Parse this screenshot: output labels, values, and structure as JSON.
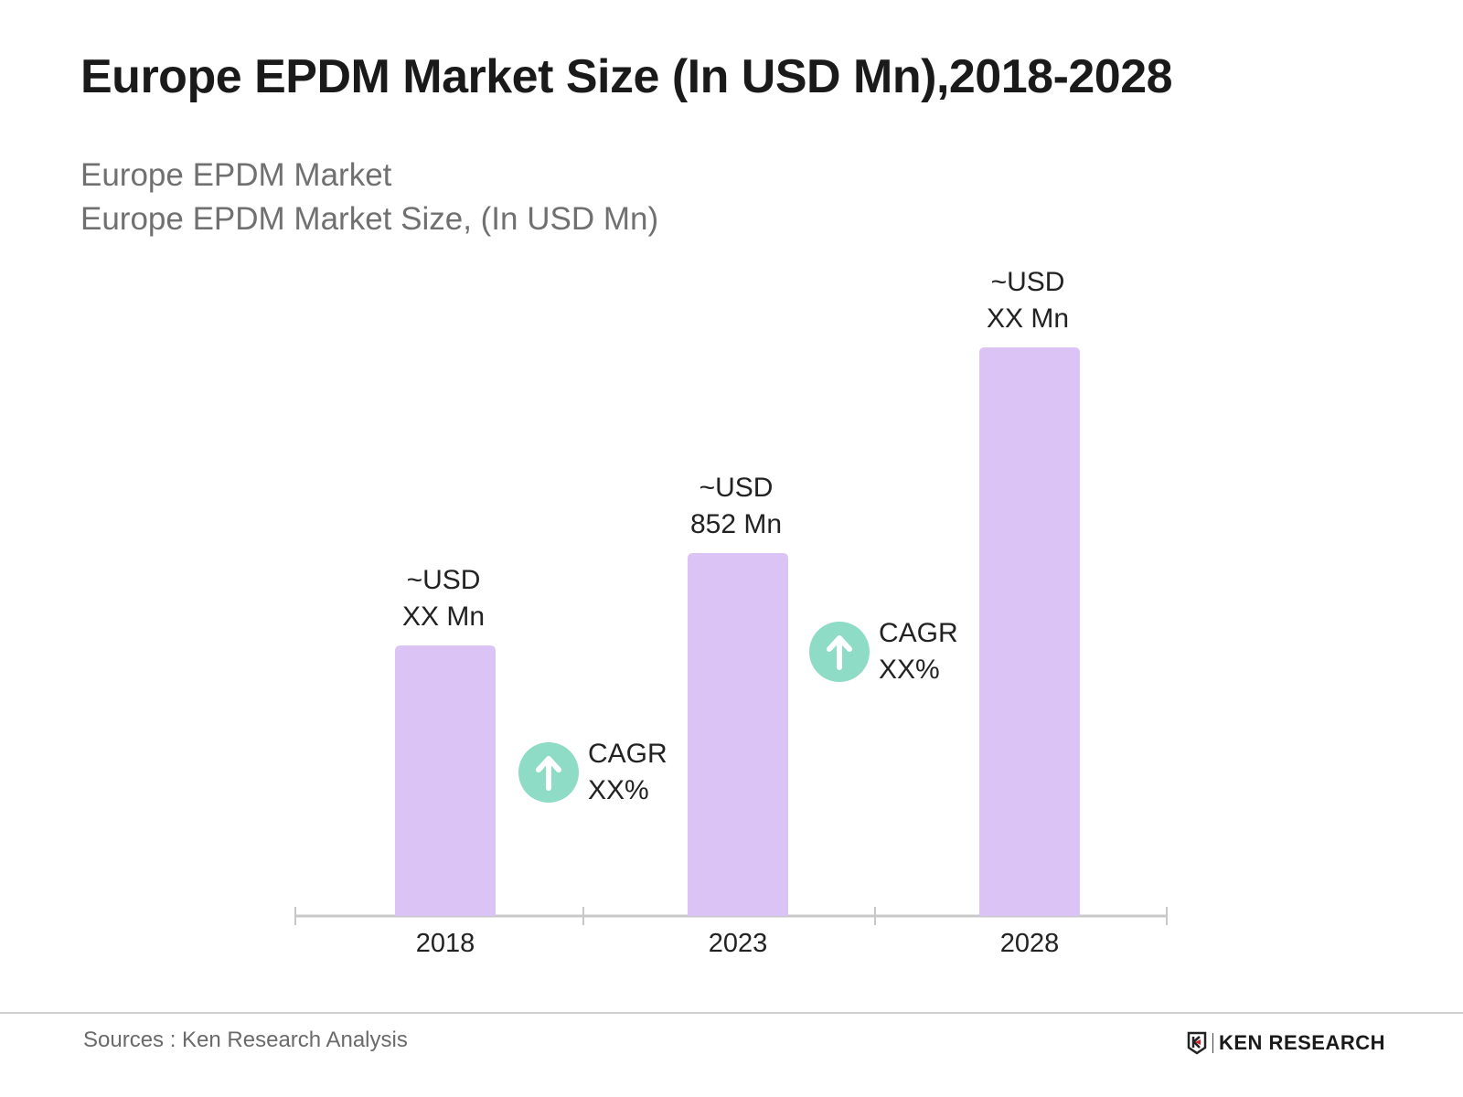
{
  "title": "Europe EPDM Market Size (In USD Mn),2018-2028",
  "subtitle_lines": [
    "Europe EPDM Market",
    "Europe EPDM Market Size, (In USD Mn)"
  ],
  "chart_data": {
    "type": "bar",
    "categories": [
      "2018",
      "2023",
      "2028"
    ],
    "values": [
      635,
      852,
      1335
    ],
    "data_labels": [
      [
        "~USD",
        "XX Mn"
      ],
      [
        "~USD",
        "852 Mn"
      ],
      [
        "~USD",
        "XX Mn"
      ]
    ],
    "annotations": [
      {
        "between": [
          "2018",
          "2023"
        ],
        "lines": [
          "CAGR",
          "XX%"
        ],
        "icon": "arrow-up-circle-icon"
      },
      {
        "between": [
          "2023",
          "2028"
        ],
        "lines": [
          "CAGR",
          "XX%"
        ],
        "icon": "arrow-up-circle-icon"
      }
    ],
    "grid": false,
    "y_axis_visible": false,
    "colors": {
      "bar": "#dcc3f5",
      "cagr_icon": "#8edcc6",
      "axis": "#c8c8c8"
    }
  },
  "footer": {
    "source": "Sources : Ken Research Analysis",
    "logo_text": "KEN RESEARCH"
  }
}
